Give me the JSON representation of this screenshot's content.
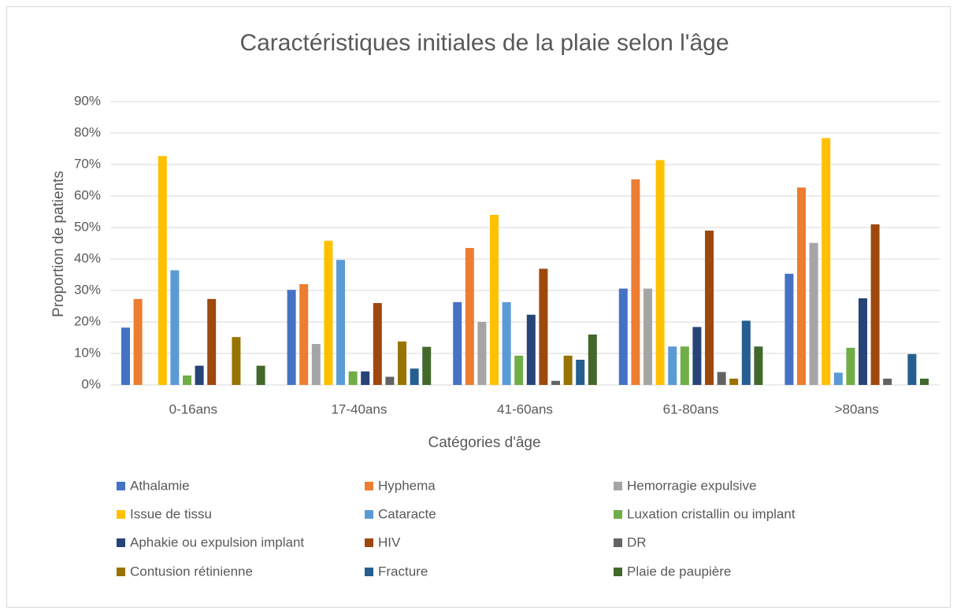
{
  "chart_data": {
    "type": "bar",
    "title": "Caractéristiques initiales de la plaie selon l'âge",
    "x_label": "Catégories d'âge",
    "y_label": "Proportion de patients",
    "categories": [
      "0-16ans",
      "17-40ans",
      "41-60ans",
      "61-80ans",
      ">80ans"
    ],
    "series": [
      {
        "name": "Athalamie",
        "color": "#4472c4",
        "values": [
          18.2,
          30.2,
          26.3,
          30.6,
          35.3
        ]
      },
      {
        "name": "Hyphema",
        "color": "#ed7d31",
        "values": [
          27.3,
          32,
          43.5,
          65.3,
          62.7
        ]
      },
      {
        "name": "Hemorragie expulsive",
        "color": "#a5a5a5",
        "values": [
          0,
          13,
          20,
          30.6,
          45.1
        ]
      },
      {
        "name": "Issue de tissu",
        "color": "#ffc000",
        "values": [
          72.7,
          45.8,
          54,
          71.4,
          78.4
        ]
      },
      {
        "name": "Cataracte",
        "color": "#5b9bd5",
        "values": [
          36.4,
          39.7,
          26.3,
          12.2,
          3.9
        ]
      },
      {
        "name": "Luxation cristallin ou implant",
        "color": "#70ad47",
        "values": [
          3,
          4.3,
          9.3,
          12.2,
          11.8
        ]
      },
      {
        "name": "Aphakie ou expulsion implant",
        "color": "#264478",
        "values": [
          6.1,
          4.3,
          22.3,
          18.4,
          27.5
        ]
      },
      {
        "name": "HIV",
        "color": "#9e480e",
        "values": [
          27.3,
          26,
          36.9,
          49,
          51
        ]
      },
      {
        "name": "DR",
        "color": "#636363",
        "values": [
          0,
          2.6,
          1.3,
          4.1,
          2
        ]
      },
      {
        "name": "Contusion rétinienne",
        "color": "#997300",
        "values": [
          15.2,
          13.8,
          9.3,
          2,
          0
        ]
      },
      {
        "name": "Fracture",
        "color": "#255e91",
        "values": [
          0,
          5.2,
          8,
          20.4,
          9.8
        ]
      },
      {
        "name": "Plaie de paupière",
        "color": "#43682b",
        "values": [
          6.1,
          12.1,
          16,
          12.2,
          2
        ]
      }
    ],
    "ylim": [
      0,
      90
    ],
    "yticks": [
      {
        "value": 0,
        "label": "0%"
      },
      {
        "value": 10,
        "label": "10%"
      },
      {
        "value": 20,
        "label": "20%"
      },
      {
        "value": 30,
        "label": "30%"
      },
      {
        "value": 40,
        "label": "40%"
      },
      {
        "value": 50,
        "label": "50%"
      },
      {
        "value": 60,
        "label": "60%"
      },
      {
        "value": 70,
        "label": "70%"
      },
      {
        "value": 80,
        "label": "80%"
      },
      {
        "value": 90,
        "label": "90%"
      }
    ],
    "grid": true,
    "legend": "bottom"
  }
}
